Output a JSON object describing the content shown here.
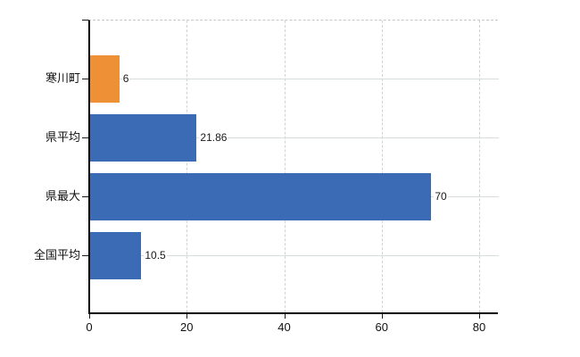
{
  "chart_data": {
    "type": "bar",
    "orientation": "horizontal",
    "title": "",
    "xlabel": "",
    "ylabel": "",
    "categories": [
      "寒川町",
      "県平均",
      "県最大",
      "全国平均"
    ],
    "values": [
      6,
      21.86,
      70,
      10.5
    ],
    "value_labels": [
      "6",
      "21.86",
      "70",
      "10.5"
    ],
    "bar_colors": [
      "#ed9036",
      "#3b6bb4",
      "#3b6bb4",
      "#3b6bb4"
    ],
    "highlight_category": "寒川町",
    "x_tick_values": [
      0,
      20,
      40,
      60,
      80
    ],
    "x_tick_labels": [
      "0",
      "20",
      "40",
      "60",
      "80"
    ],
    "xlim": [
      0,
      84
    ],
    "grid": {
      "vertical": "dashed",
      "horizontal": "solid",
      "top_border": "dashed"
    },
    "legend": "none"
  },
  "colors": {
    "background": "#ffffff",
    "bar_blue": "#3b6bb4",
    "bar_orange": "#ed9036",
    "axis": "#000000",
    "tick": "#1a1a1a",
    "text": "#111111",
    "grid_horizontal": "#d7ddd7",
    "grid_vertical": "#d2d2d2",
    "top_border": "#c6c6c6"
  }
}
